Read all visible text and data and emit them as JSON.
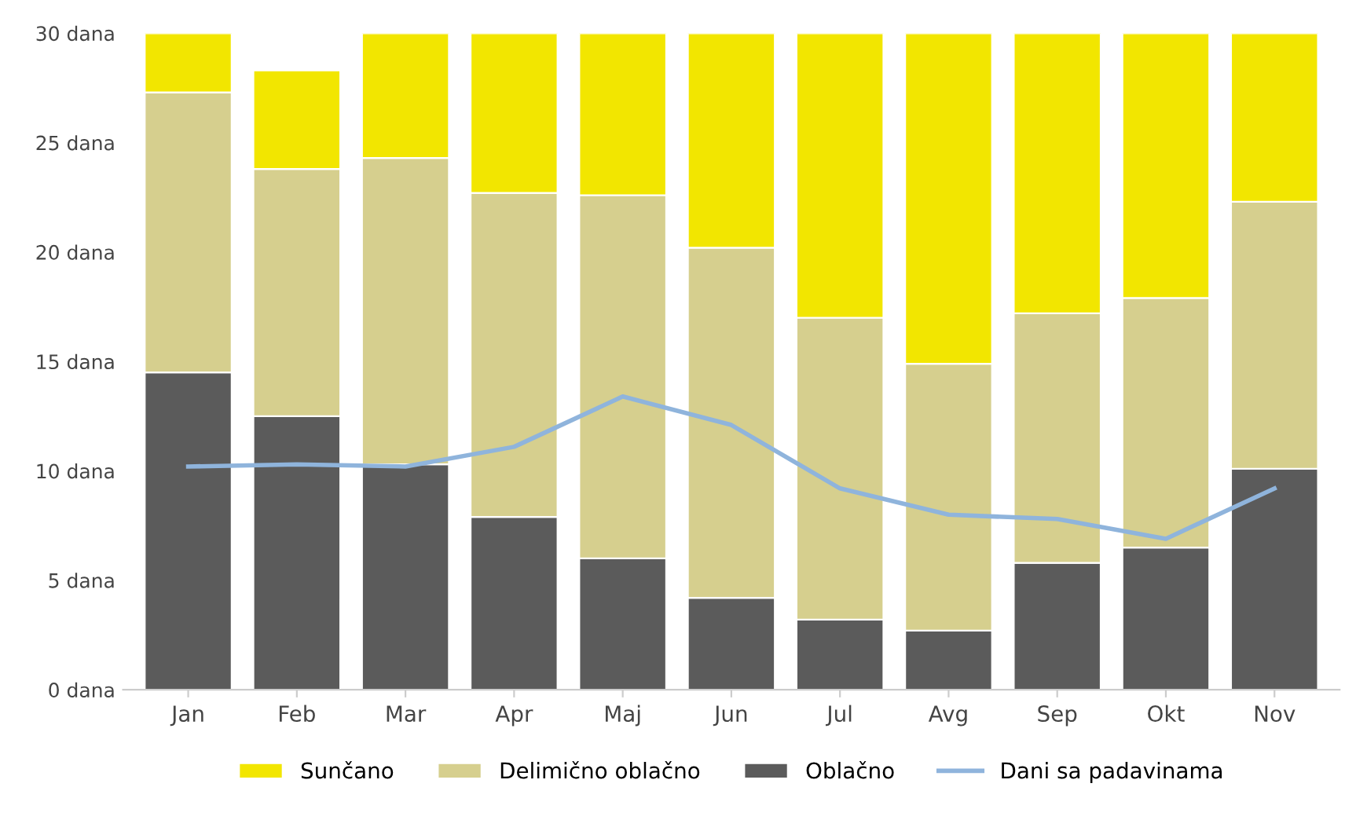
{
  "chart_data": {
    "type": "bar",
    "stacked": true,
    "categories": [
      "Jan",
      "Feb",
      "Mar",
      "Apr",
      "Maj",
      "Jun",
      "Jul",
      "Avg",
      "Sep",
      "Okt",
      "Nov"
    ],
    "series": [
      {
        "name": "Oblačno",
        "color": "#5b5b5b",
        "values": [
          14.5,
          12.5,
          10.3,
          7.9,
          6.0,
          4.2,
          3.2,
          2.7,
          5.8,
          6.5,
          10.1
        ]
      },
      {
        "name": "Delimično oblačno",
        "color": "#d6cf8e",
        "values": [
          12.8,
          11.3,
          14.0,
          14.8,
          16.6,
          16.0,
          13.8,
          12.2,
          11.4,
          11.4,
          12.2
        ]
      },
      {
        "name": "Sunčano",
        "color": "#f2e600",
        "values": [
          2.7,
          4.5,
          5.7,
          7.3,
          7.4,
          9.8,
          13.0,
          15.1,
          12.8,
          12.1,
          7.7
        ]
      },
      {
        "name": "Dani sa padavinama",
        "type": "line",
        "color": "#8fb4dc",
        "values": [
          10.2,
          10.3,
          10.2,
          11.1,
          13.4,
          12.1,
          9.2,
          8.0,
          7.8,
          6.9,
          9.2
        ]
      }
    ],
    "ylim": [
      0,
      30
    ],
    "yticks": [
      {
        "value": 0,
        "label": "0 dana"
      },
      {
        "value": 5,
        "label": "5 dana"
      },
      {
        "value": 10,
        "label": "10 dana"
      },
      {
        "value": 15,
        "label": "15 dana"
      },
      {
        "value": 20,
        "label": "20 dana"
      },
      {
        "value": 25,
        "label": "25 dana"
      },
      {
        "value": 30,
        "label": "30 dana"
      }
    ],
    "legend": "bottom",
    "marker": "none",
    "line_style": "solid"
  }
}
